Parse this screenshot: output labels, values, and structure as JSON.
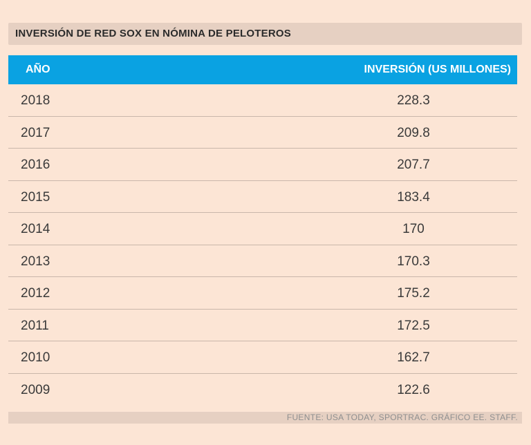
{
  "title": "INVERSIÓN DE RED SOX EN NÓMINA DE PELOTEROS",
  "source": "FUENTE: USA TODAY, SPORTRAC. GRÁFICO EE. STAFF.",
  "colors": {
    "background": "#fce5d5",
    "header": "#0aa2e2",
    "title_bar": "#e6d0c2"
  },
  "chart_data": {
    "type": "table",
    "title": "INVERSIÓN DE RED SOX EN NÓMINA DE PELOTEROS",
    "columns": [
      "AÑO",
      "INVERSIÓN (US MILLONES)"
    ],
    "rows": [
      {
        "year": "2018",
        "value": "228.3"
      },
      {
        "year": "2017",
        "value": "209.8"
      },
      {
        "year": "2016",
        "value": "207.7"
      },
      {
        "year": "2015",
        "value": "183.4"
      },
      {
        "year": "2014",
        "value": "170"
      },
      {
        "year": "2013",
        "value": "170.3"
      },
      {
        "year": "2012",
        "value": "175.2"
      },
      {
        "year": "2011",
        "value": "172.5"
      },
      {
        "year": "2010",
        "value": "162.7"
      },
      {
        "year": "2009",
        "value": "122.6"
      }
    ]
  }
}
